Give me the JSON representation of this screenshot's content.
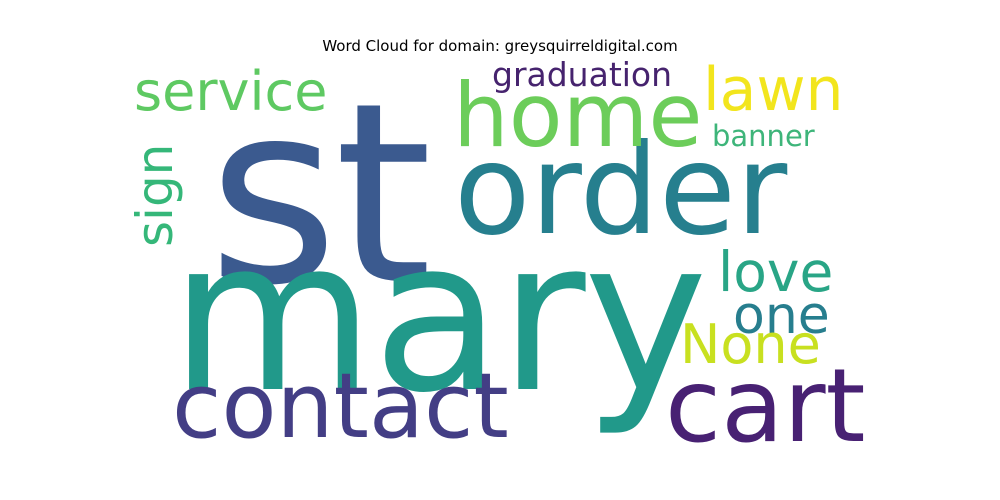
{
  "title": "Word Cloud for domain: greysquirreldigital.com",
  "words": [
    {
      "text": "st",
      "color": "#3b5a8f"
    },
    {
      "text": "mary",
      "color": "#21998a"
    },
    {
      "text": "order",
      "color": "#267f8e"
    },
    {
      "text": "home",
      "color": "#6ccd5a"
    },
    {
      "text": "lawn",
      "color": "#f2e51d"
    },
    {
      "text": "service",
      "color": "#5ec962"
    },
    {
      "text": "graduation",
      "color": "#46236e"
    },
    {
      "text": "banner",
      "color": "#3eb57a"
    },
    {
      "text": "sign",
      "color": "#35b779"
    },
    {
      "text": "love",
      "color": "#29a586"
    },
    {
      "text": "one",
      "color": "#277e8e"
    },
    {
      "text": "None",
      "color": "#c8e020"
    },
    {
      "text": "contact",
      "color": "#433e85"
    },
    {
      "text": "cart",
      "color": "#482173"
    }
  ]
}
